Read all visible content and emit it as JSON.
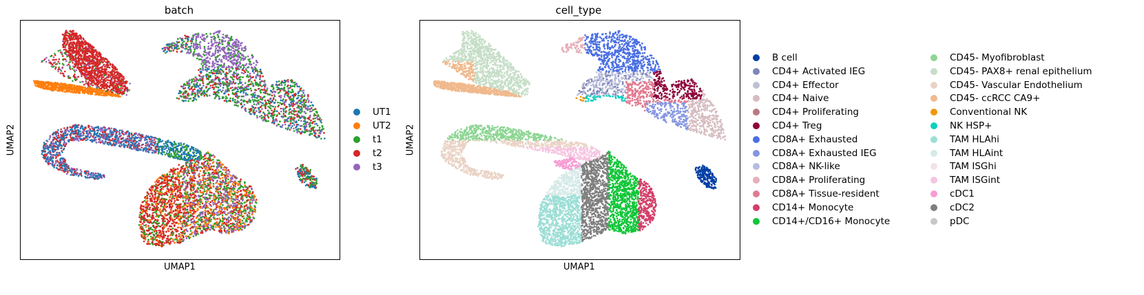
{
  "chart_data": [
    {
      "type": "scatter",
      "title": "batch",
      "xlabel": "UMAP1",
      "ylabel": "UMAP2",
      "grid": false,
      "legend_position": "right",
      "series": [
        {
          "name": "UT1",
          "color": "#1f77b4"
        },
        {
          "name": "UT2",
          "color": "#ff7f0e"
        },
        {
          "name": "t1",
          "color": "#2ca02c"
        },
        {
          "name": "t2",
          "color": "#d62728"
        },
        {
          "name": "t3",
          "color": "#9467bd"
        }
      ]
    },
    {
      "type": "scatter",
      "title": "cell_type",
      "xlabel": "UMAP1",
      "ylabel": "UMAP2",
      "grid": false,
      "legend_position": "right",
      "series": [
        {
          "name": "B cell",
          "color": "#023fa5"
        },
        {
          "name": "CD4+ Activated IEG",
          "color": "#7d87b9"
        },
        {
          "name": "CD4+ Effector",
          "color": "#bec1d4"
        },
        {
          "name": "CD4+ Naive",
          "color": "#d6bcc0"
        },
        {
          "name": "CD4+ Proliferating",
          "color": "#bb7784"
        },
        {
          "name": "CD4+ Treg",
          "color": "#8e063b"
        },
        {
          "name": "CD8A+ Exhausted",
          "color": "#4a6fe3"
        },
        {
          "name": "CD8A+ Exhausted IEG",
          "color": "#8595e1"
        },
        {
          "name": "CD8A+ NK-like",
          "color": "#b5bbe3"
        },
        {
          "name": "CD8A+ Proliferating",
          "color": "#e6afb9"
        },
        {
          "name": "CD8A+ Tissue-resident",
          "color": "#e07b91"
        },
        {
          "name": "CD14+ Monocyte",
          "color": "#d33f6a"
        },
        {
          "name": "CD14+/CD16+ Monocyte",
          "color": "#11c638"
        },
        {
          "name": "CD45- Myofibroblast",
          "color": "#8dd593"
        },
        {
          "name": "CD45- PAX8+ renal epithelium",
          "color": "#c6dec7"
        },
        {
          "name": "CD45- Vascular Endothelium",
          "color": "#ead3c6"
        },
        {
          "name": "CD45- ccRCC CA9+",
          "color": "#f0b98d"
        },
        {
          "name": "Conventional NK",
          "color": "#ef9708"
        },
        {
          "name": "NK HSP+",
          "color": "#0fcfc0"
        },
        {
          "name": "TAM HLAhi",
          "color": "#9cded6"
        },
        {
          "name": "TAM HLAint",
          "color": "#d5eae7"
        },
        {
          "name": "TAM ISGhi",
          "color": "#f3e1eb"
        },
        {
          "name": "TAM ISGint",
          "color": "#f6c4e1"
        },
        {
          "name": "cDC1",
          "color": "#f79cd4"
        },
        {
          "name": "cDC2",
          "color": "#7f7f7f"
        },
        {
          "name": "pDC",
          "color": "#c7c7c7"
        }
      ]
    }
  ]
}
